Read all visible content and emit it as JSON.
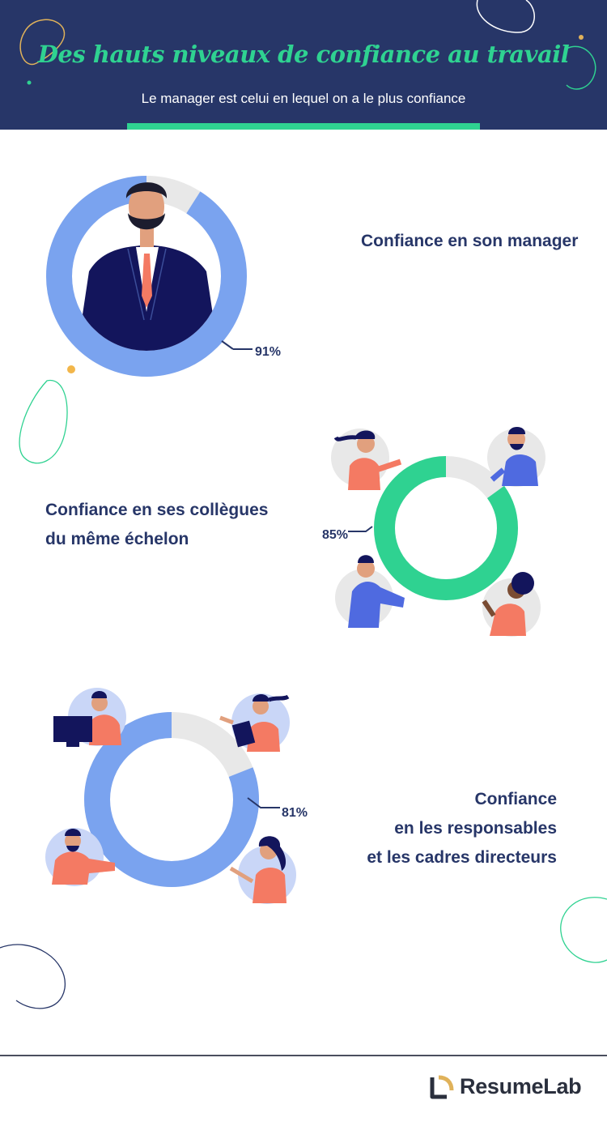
{
  "header": {
    "title": "Des hauts niveaux de confiance au travail",
    "subtitle": "Le manager est celui en lequel on a le plus confiance"
  },
  "colors": {
    "navy": "#273668",
    "green": "#2fd291",
    "blue": "#7aa3ef",
    "gray": "#e8e8e8",
    "coral": "#f47a63"
  },
  "chart_data": [
    {
      "type": "pie",
      "label": "Confiance en son manager",
      "value": 91,
      "value_label": "91%",
      "color": "#7aa3ef"
    },
    {
      "type": "pie",
      "label": "Confiance en ses collègues du même échelon",
      "value": 85,
      "value_label": "85%",
      "color": "#2fd291"
    },
    {
      "type": "pie",
      "label": "Confiance en les responsables et les cadres directeurs",
      "value": 81,
      "value_label": "81%",
      "color": "#7aa3ef"
    }
  ],
  "labels": {
    "manager": [
      "Confiance en son manager"
    ],
    "collegues": [
      "Confiance en ses collègues",
      "du même échelon"
    ],
    "responsables": [
      "Confiance",
      "en les responsables",
      "et les cadres directeurs"
    ]
  },
  "footer": {
    "brand": "ResumeLab",
    "logo_icon": "resumelab-logo-icon"
  }
}
